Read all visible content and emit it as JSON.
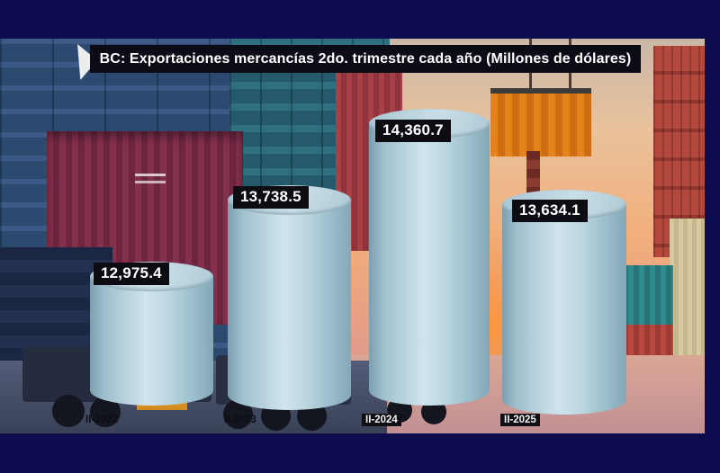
{
  "frame": {
    "border_color": "#0c0c4e"
  },
  "title": "BC: Exportaciones mercancías 2do. trimestre cada año (Millones de dólares)",
  "chart_data": {
    "type": "bar",
    "subtype": "3d-cylinder",
    "title": "BC: Exportaciones mercancías 2do. trimestre cada año (Millones de dólares)",
    "categories": [
      "II-2022",
      "II-2023",
      "II-2024",
      "II-2025"
    ],
    "values": [
      12975.4,
      13738.5,
      14360.7,
      13634.1
    ],
    "value_labels": [
      "12,975.4",
      "13,738.5",
      "14,360.7",
      "13,634.1"
    ],
    "xlabel": "",
    "ylabel": "",
    "grid": false,
    "legend": "none",
    "bar_color": "#b3cfdb",
    "value_label_style": {
      "background": "#0c0c12",
      "color": "#ffffff"
    },
    "background": "container-port-photo"
  }
}
